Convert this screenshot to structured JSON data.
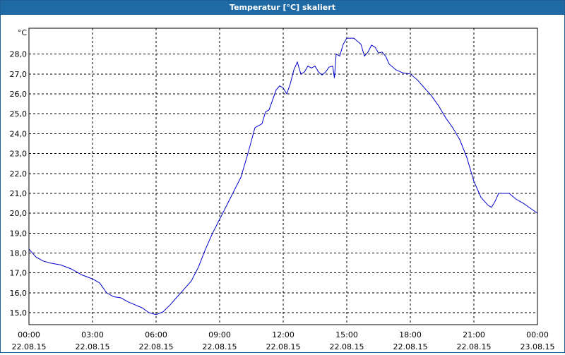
{
  "window": {
    "title": "Temperatur [°C] skaliert"
  },
  "colors": {
    "titlebar": "#1f6aa5",
    "series": "#0000cc",
    "grid": "#000000"
  },
  "chart_data": {
    "type": "line",
    "title": "Temperatur [°C] skaliert",
    "ylabel": "°C",
    "xlabel": "",
    "ylim": [
      14.4,
      29.3
    ],
    "xlim": [
      "22.08.15 00:00",
      "23.08.15 00:00"
    ],
    "grid": true,
    "yticks": [
      {
        "value": 15,
        "label": "15,0"
      },
      {
        "value": 16,
        "label": "16,0"
      },
      {
        "value": 17,
        "label": "17,0"
      },
      {
        "value": 18,
        "label": "18,0"
      },
      {
        "value": 19,
        "label": "19,0"
      },
      {
        "value": 20,
        "label": "20,0"
      },
      {
        "value": 21,
        "label": "21,0"
      },
      {
        "value": 22,
        "label": "22,0"
      },
      {
        "value": 23,
        "label": "23,0"
      },
      {
        "value": 24,
        "label": "24,0"
      },
      {
        "value": 25,
        "label": "25,0"
      },
      {
        "value": 26,
        "label": "26,0"
      },
      {
        "value": 27,
        "label": "27,0"
      },
      {
        "value": 28,
        "label": "28,0"
      }
    ],
    "xticks": [
      {
        "value": "22.08.15 00:00",
        "time": "00:00",
        "date": "22.08.15"
      },
      {
        "value": "22.08.15 03:00",
        "time": "03:00",
        "date": "22.08.15"
      },
      {
        "value": "22.08.15 06:00",
        "time": "06:00",
        "date": "22.08.15"
      },
      {
        "value": "22.08.15 09:00",
        "time": "09:00",
        "date": "22.08.15"
      },
      {
        "value": "22.08.15 12:00",
        "time": "12:00",
        "date": "22.08.15"
      },
      {
        "value": "22.08.15 15:00",
        "time": "15:00",
        "date": "22.08.15"
      },
      {
        "value": "22.08.15 18:00",
        "time": "18:00",
        "date": "22.08.15"
      },
      {
        "value": "22.08.15 21:00",
        "time": "21:00",
        "date": "22.08.15"
      },
      {
        "value": "23.08.15 00:00",
        "time": "00:00",
        "date": "23.08.15"
      }
    ],
    "series": [
      {
        "values": [
          [
            "22.08.15 00:00",
            18.2
          ],
          [
            "22.08.15 00:20",
            17.8
          ],
          [
            "22.08.15 00:40",
            17.6
          ],
          [
            "22.08.15 01:00",
            17.5
          ],
          [
            "22.08.15 01:30",
            17.4
          ],
          [
            "22.08.15 02:00",
            17.2
          ],
          [
            "22.08.15 02:30",
            16.9
          ],
          [
            "22.08.15 03:00",
            16.7
          ],
          [
            "22.08.15 03:20",
            16.5
          ],
          [
            "22.08.15 03:40",
            16.0
          ],
          [
            "22.08.15 04:00",
            15.8
          ],
          [
            "22.08.15 04:20",
            15.75
          ],
          [
            "22.08.15 04:40",
            15.55
          ],
          [
            "22.08.15 05:00",
            15.4
          ],
          [
            "22.08.15 05:20",
            15.25
          ],
          [
            "22.08.15 05:40",
            15.0
          ],
          [
            "22.08.15 06:00",
            14.9
          ],
          [
            "22.08.15 06:20",
            15.05
          ],
          [
            "22.08.15 06:40",
            15.4
          ],
          [
            "22.08.15 07:00",
            15.8
          ],
          [
            "22.08.15 07:20",
            16.2
          ],
          [
            "22.08.15 07:40",
            16.6
          ],
          [
            "22.08.15 08:00",
            17.3
          ],
          [
            "22.08.15 08:20",
            18.2
          ],
          [
            "22.08.15 08:40",
            19.0
          ],
          [
            "22.08.15 09:00",
            19.7
          ],
          [
            "22.08.15 09:20",
            20.4
          ],
          [
            "22.08.15 09:40",
            21.1
          ],
          [
            "22.08.15 10:00",
            21.8
          ],
          [
            "22.08.15 10:20",
            23.0
          ],
          [
            "22.08.15 10:40",
            24.3
          ],
          [
            "22.08.15 11:00",
            24.5
          ],
          [
            "22.08.15 11:10",
            25.1
          ],
          [
            "22.08.15 11:20",
            25.2
          ],
          [
            "22.08.15 11:40",
            26.2
          ],
          [
            "22.08.15 11:50",
            26.4
          ],
          [
            "22.08.15 12:00",
            26.3
          ],
          [
            "22.08.15 12:10",
            26.0
          ],
          [
            "22.08.15 12:20",
            26.5
          ],
          [
            "22.08.15 12:30",
            27.2
          ],
          [
            "22.08.15 12:40",
            27.6
          ],
          [
            "22.08.15 12:50",
            27.0
          ],
          [
            "22.08.15 13:00",
            27.1
          ],
          [
            "22.08.15 13:10",
            27.4
          ],
          [
            "22.08.15 13:20",
            27.3
          ],
          [
            "22.08.15 13:30",
            27.4
          ],
          [
            "22.08.15 13:40",
            27.1
          ],
          [
            "22.08.15 13:50",
            26.95
          ],
          [
            "22.08.15 14:00",
            27.1
          ],
          [
            "22.08.15 14:10",
            27.35
          ],
          [
            "22.08.15 14:20",
            27.4
          ],
          [
            "22.08.15 14:25",
            26.8
          ],
          [
            "22.08.15 14:30",
            28.0
          ],
          [
            "22.08.15 14:40",
            27.9
          ],
          [
            "22.08.15 14:50",
            28.5
          ],
          [
            "22.08.15 15:00",
            28.8
          ],
          [
            "22.08.15 15:20",
            28.8
          ],
          [
            "22.08.15 15:40",
            28.5
          ],
          [
            "22.08.15 15:50",
            27.9
          ],
          [
            "22.08.15 16:00",
            28.1
          ],
          [
            "22.08.15 16:10",
            28.45
          ],
          [
            "22.08.15 16:20",
            28.35
          ],
          [
            "22.08.15 16:30",
            28.05
          ],
          [
            "22.08.15 16:40",
            28.1
          ],
          [
            "22.08.15 16:50",
            27.9
          ],
          [
            "22.08.15 17:00",
            27.5
          ],
          [
            "22.08.15 17:20",
            27.2
          ],
          [
            "22.08.15 17:40",
            27.05
          ],
          [
            "22.08.15 18:00",
            27.0
          ],
          [
            "22.08.15 18:20",
            26.7
          ],
          [
            "22.08.15 18:40",
            26.3
          ],
          [
            "22.08.15 19:00",
            25.9
          ],
          [
            "22.08.15 19:20",
            25.4
          ],
          [
            "22.08.15 19:40",
            24.8
          ],
          [
            "22.08.15 20:00",
            24.3
          ],
          [
            "22.08.15 20:20",
            23.7
          ],
          [
            "22.08.15 20:40",
            22.8
          ],
          [
            "22.08.15 21:00",
            21.6
          ],
          [
            "22.08.15 21:20",
            20.8
          ],
          [
            "22.08.15 21:40",
            20.4
          ],
          [
            "22.08.15 21:50",
            20.3
          ],
          [
            "22.08.15 22:00",
            20.6
          ],
          [
            "22.08.15 22:10",
            21.0
          ],
          [
            "22.08.15 22:20",
            21.0
          ],
          [
            "22.08.15 22:40",
            21.0
          ],
          [
            "22.08.15 23:00",
            20.7
          ],
          [
            "22.08.15 23:20",
            20.5
          ],
          [
            "22.08.15 23:40",
            20.25
          ],
          [
            "23.08.15 00:00",
            20.0
          ]
        ]
      }
    ]
  }
}
